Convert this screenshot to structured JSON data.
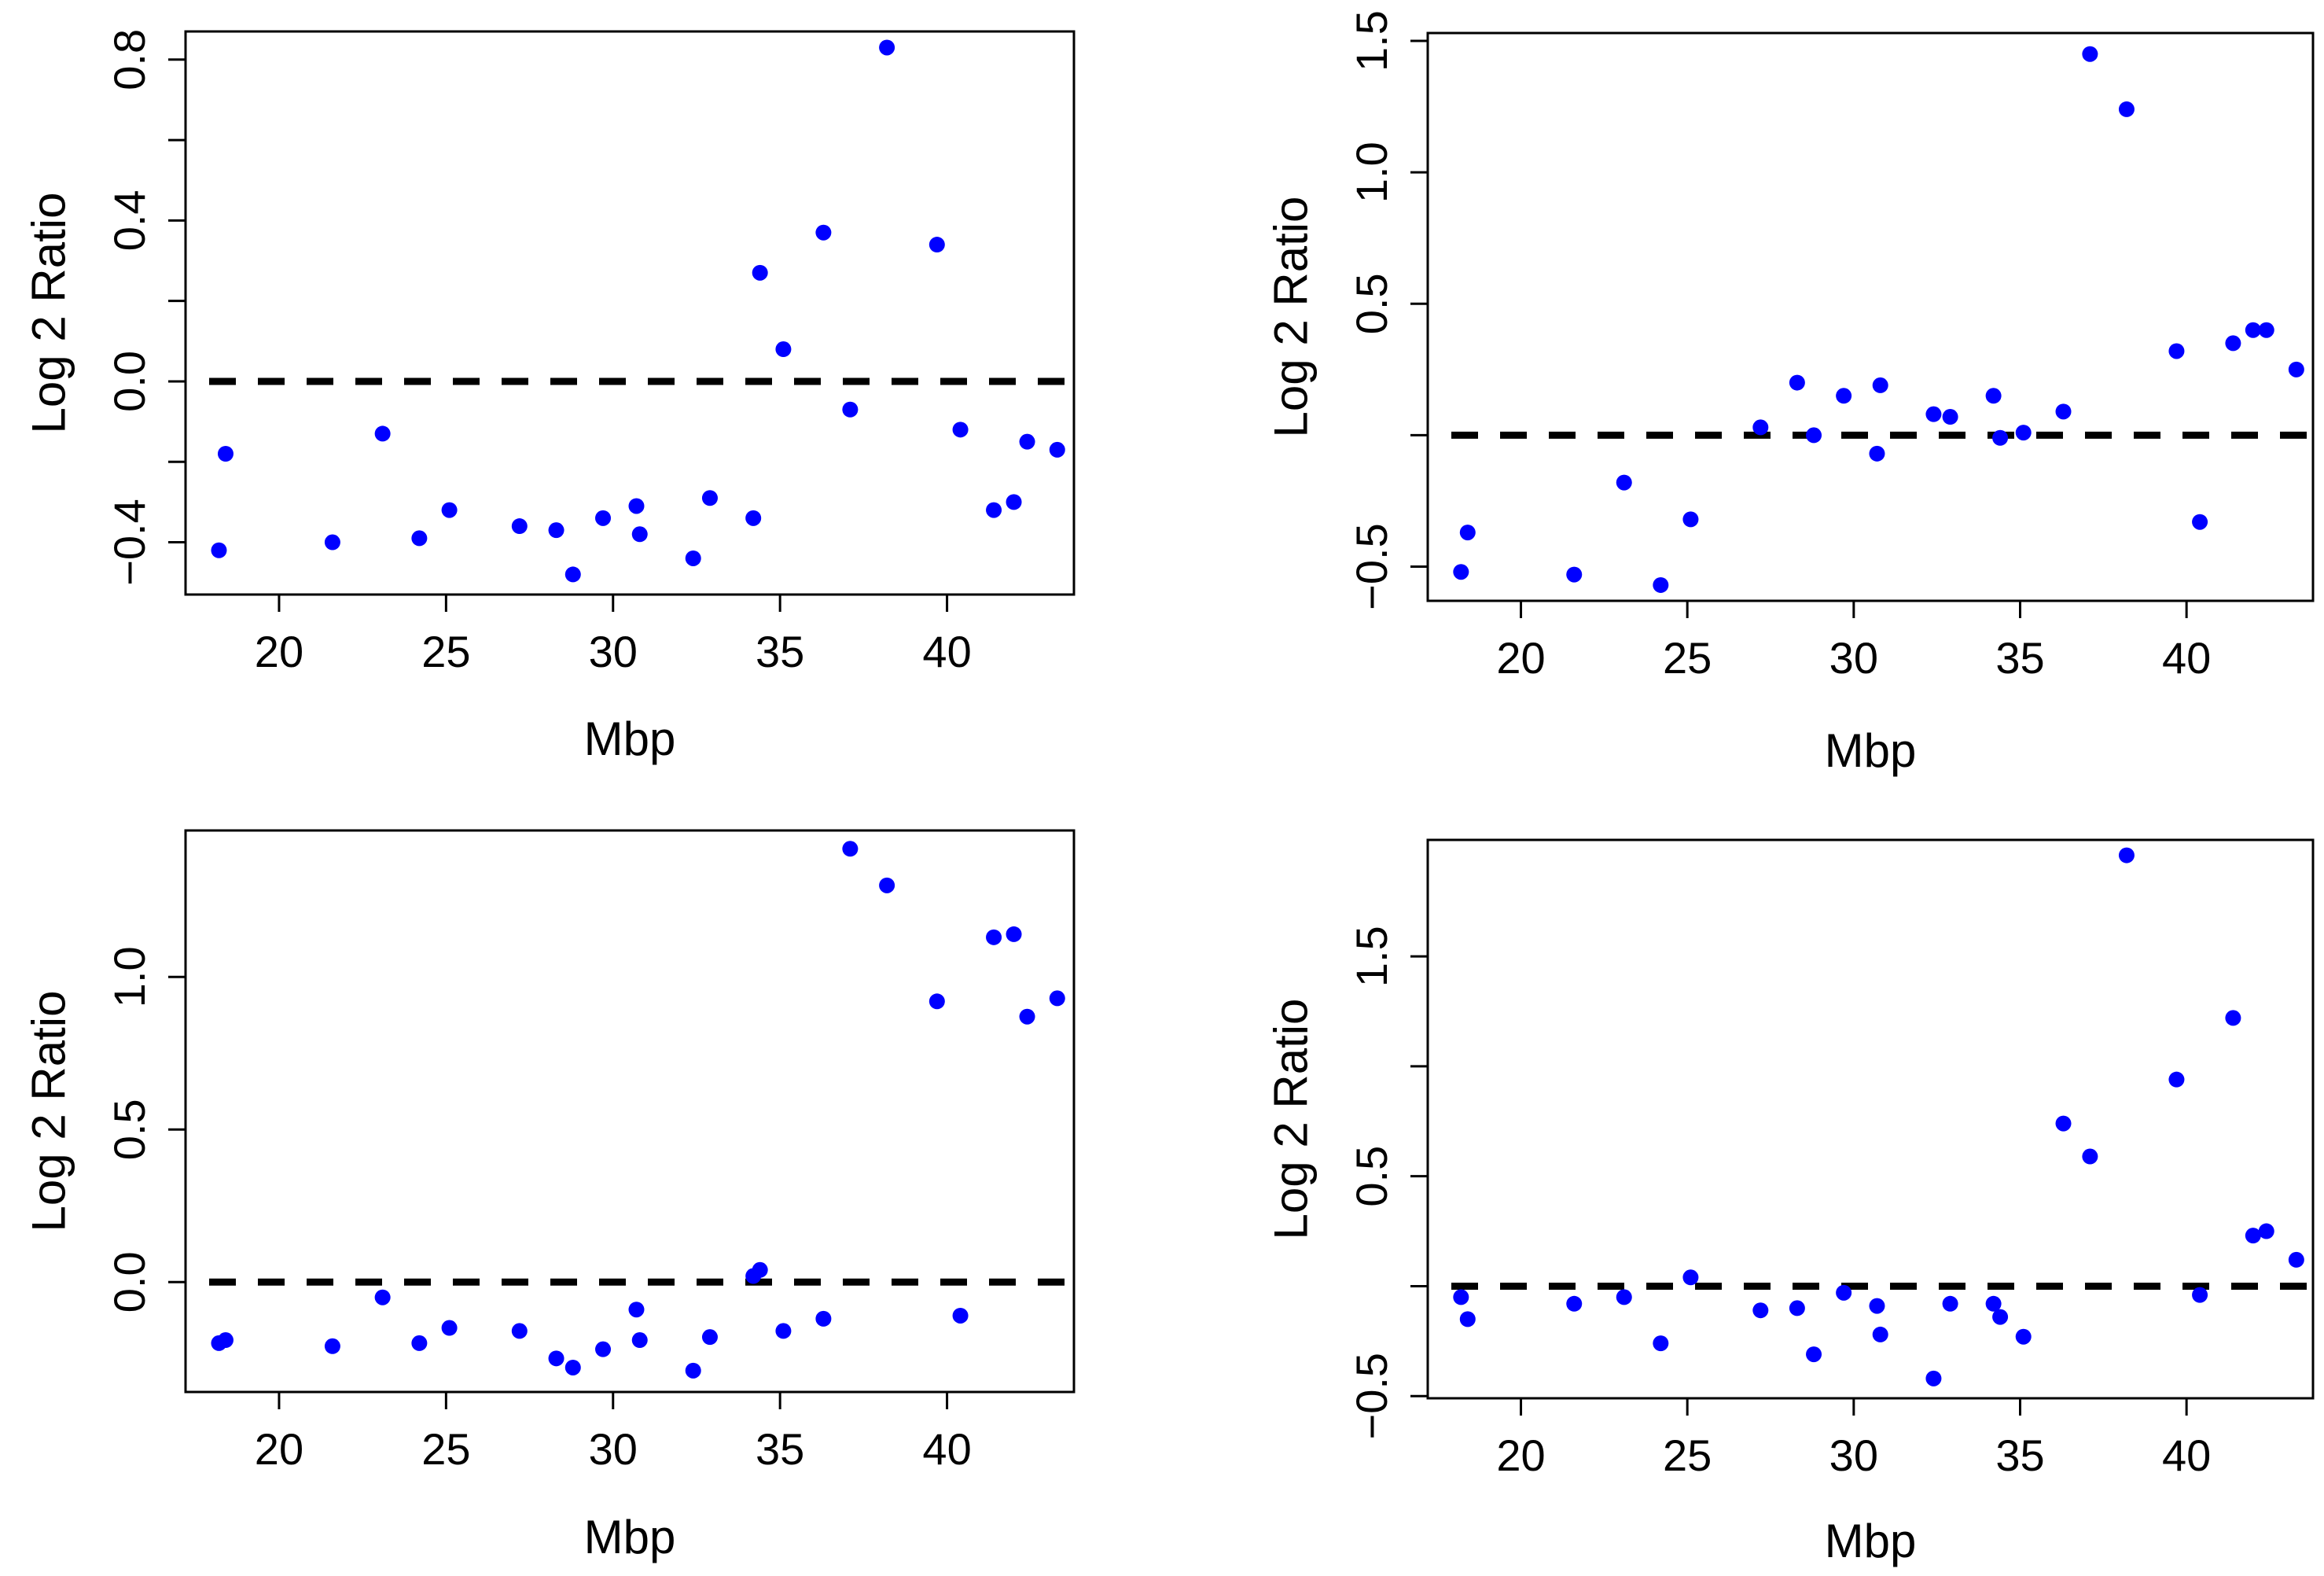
{
  "figure": {
    "description_free": true
  },
  "chart_data": [
    {
      "type": "scatter",
      "title": "",
      "xlabel": "Mbp",
      "ylabel": "Log 2 Ratio",
      "xlim": [
        17.2,
        43.8
      ],
      "ylim": [
        -0.53,
        0.87
      ],
      "xticks": [
        20,
        25,
        30,
        35,
        40
      ],
      "xtick_labels": [
        "20",
        "25",
        "30",
        "35",
        "40"
      ],
      "yticks": [
        -0.4,
        -0.2,
        0.0,
        0.2,
        0.4,
        0.6,
        0.8
      ],
      "ytick_labels": [
        "−0.4",
        "",
        "0.0",
        "",
        "0.4",
        "",
        "0.8"
      ],
      "reference_line": 0.0,
      "marker_color": "#0000ff",
      "x": [
        18.2,
        18.4,
        21.6,
        23.1,
        24.2,
        25.1,
        27.2,
        28.3,
        28.8,
        29.7,
        30.7,
        30.8,
        32.4,
        32.9,
        34.2,
        34.4,
        35.1,
        36.3,
        37.1,
        38.2,
        39.7,
        40.4,
        41.4,
        42.0,
        42.4,
        43.3
      ],
      "y": [
        -0.42,
        -0.18,
        -0.4,
        -0.13,
        -0.39,
        -0.32,
        -0.36,
        -0.37,
        -0.48,
        -0.34,
        -0.31,
        -0.38,
        -0.44,
        -0.29,
        -0.34,
        0.27,
        0.08,
        0.37,
        -0.07,
        0.83,
        0.34,
        -0.12,
        -0.32,
        -0.3,
        -0.15,
        -0.17
      ]
    },
    {
      "type": "scatter",
      "title": "",
      "xlabel": "Mbp",
      "ylabel": "Log 2 Ratio",
      "xlim": [
        17.2,
        43.8
      ],
      "ylim": [
        -0.63,
        1.53
      ],
      "xticks": [
        20,
        25,
        30,
        35,
        40
      ],
      "xtick_labels": [
        "20",
        "25",
        "30",
        "35",
        "40"
      ],
      "yticks": [
        -0.5,
        0.0,
        0.5,
        1.0,
        1.5
      ],
      "ytick_labels": [
        "−0.5",
        "",
        "0.5",
        "1.0",
        "1.5"
      ],
      "reference_line": 0.0,
      "marker_color": "#0000ff",
      "x": [
        18.2,
        18.4,
        21.6,
        23.1,
        24.2,
        25.1,
        27.2,
        28.3,
        28.8,
        29.7,
        30.7,
        30.8,
        32.4,
        32.9,
        34.2,
        34.4,
        35.1,
        36.3,
        37.1,
        38.2,
        39.7,
        40.4,
        41.4,
        42.0,
        42.4,
        43.3
      ],
      "y": [
        -0.52,
        -0.37,
        -0.53,
        -0.18,
        -0.57,
        -0.32,
        0.03,
        0.2,
        0.0,
        0.15,
        -0.07,
        0.19,
        0.08,
        0.07,
        0.15,
        -0.01,
        0.01,
        0.09,
        1.45,
        1.24,
        0.32,
        -0.33,
        0.35,
        0.4,
        0.4,
        0.25
      ]
    },
    {
      "type": "scatter",
      "title": "",
      "xlabel": "Mbp",
      "ylabel": "Log 2 Ratio",
      "xlim": [
        17.2,
        43.8
      ],
      "ylim": [
        -0.36,
        1.48
      ],
      "xticks": [
        20,
        25,
        30,
        35,
        40
      ],
      "xtick_labels": [
        "20",
        "25",
        "30",
        "35",
        "40"
      ],
      "yticks": [
        0.0,
        0.5,
        1.0
      ],
      "ytick_labels": [
        "0.0",
        "0.5",
        "1.0"
      ],
      "reference_line": 0.0,
      "marker_color": "#0000ff",
      "x": [
        18.2,
        18.4,
        21.6,
        23.1,
        24.2,
        25.1,
        27.2,
        28.3,
        28.8,
        29.7,
        30.7,
        30.8,
        32.4,
        32.9,
        34.2,
        34.4,
        35.1,
        36.3,
        37.1,
        38.2,
        39.7,
        40.4,
        41.4,
        42.0,
        42.4,
        43.3
      ],
      "y": [
        -0.2,
        -0.19,
        -0.21,
        -0.05,
        -0.2,
        -0.15,
        -0.16,
        -0.25,
        -0.28,
        -0.22,
        -0.09,
        -0.19,
        -0.29,
        -0.18,
        0.02,
        0.04,
        -0.16,
        -0.12,
        1.42,
        1.3,
        0.92,
        -0.11,
        1.13,
        1.14,
        0.87,
        0.93
      ]
    },
    {
      "type": "scatter",
      "title": "",
      "xlabel": "Mbp",
      "ylabel": "Log 2 Ratio",
      "xlim": [
        17.2,
        43.8
      ],
      "ylim": [
        -0.51,
        2.03
      ],
      "xticks": [
        20,
        25,
        30,
        35,
        40
      ],
      "xtick_labels": [
        "20",
        "25",
        "30",
        "35",
        "40"
      ],
      "yticks": [
        -0.5,
        0.0,
        0.5,
        1.0,
        1.5
      ],
      "ytick_labels": [
        "−0.5",
        "",
        "0.5",
        "",
        "1.5"
      ],
      "reference_line": 0.0,
      "marker_color": "#0000ff",
      "x": [
        18.2,
        18.4,
        21.6,
        23.1,
        24.2,
        25.1,
        27.2,
        28.3,
        28.8,
        29.7,
        30.7,
        30.8,
        32.4,
        32.9,
        34.2,
        34.4,
        35.1,
        36.3,
        37.1,
        38.2,
        39.7,
        40.4,
        41.4,
        42.0,
        42.4,
        43.3
      ],
      "y": [
        -0.05,
        -0.15,
        -0.08,
        -0.05,
        -0.26,
        0.04,
        -0.11,
        -0.1,
        -0.31,
        -0.03,
        -0.09,
        -0.22,
        -0.42,
        -0.08,
        -0.08,
        -0.14,
        -0.23,
        0.74,
        0.59,
        1.96,
        0.94,
        -0.04,
        1.22,
        0.23,
        0.25,
        0.12
      ]
    }
  ]
}
